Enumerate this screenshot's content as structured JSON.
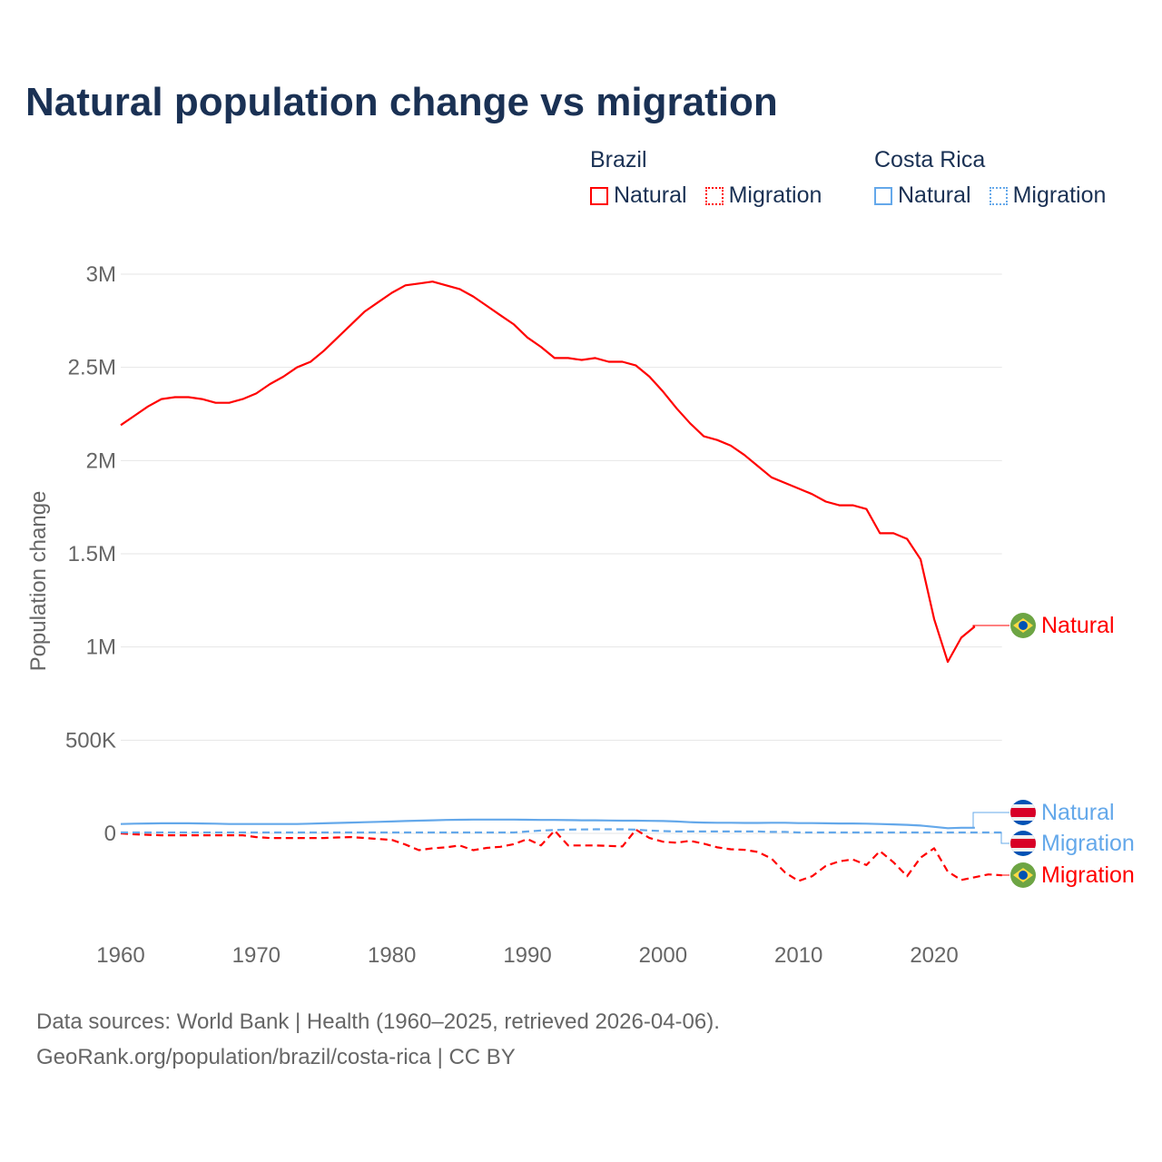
{
  "title": "Natural population change vs migration",
  "legend": {
    "groups": [
      {
        "name": "Brazil",
        "color": "#ff0000",
        "items": [
          "Natural",
          "Migration"
        ]
      },
      {
        "name": "Costa Rica",
        "color": "#64a8ea",
        "items": [
          "Natural",
          "Migration"
        ]
      }
    ]
  },
  "footer": {
    "line1": "Data sources: World Bank | Health (1960–2025, retrieved 2026-04-06).",
    "line2": "GeoRank.org/population/brazil/costa-rica | CC BY"
  },
  "chart_data": {
    "type": "line",
    "title": "Natural population change vs migration",
    "xlabel": "",
    "ylabel": "Population change",
    "xlim": [
      1960,
      2025
    ],
    "ylim": [
      -300000,
      3000000
    ],
    "x_ticks": [
      1960,
      1970,
      1980,
      1990,
      2000,
      2010,
      2020
    ],
    "y_ticks": [
      {
        "value": 0,
        "label": "0"
      },
      {
        "value": 500000,
        "label": "500K"
      },
      {
        "value": 1000000,
        "label": "1M"
      },
      {
        "value": 1500000,
        "label": "1.5M"
      },
      {
        "value": 2000000,
        "label": "2M"
      },
      {
        "value": 2500000,
        "label": "2.5M"
      },
      {
        "value": 3000000,
        "label": "3M"
      }
    ],
    "grid": true,
    "legend_position": "top-right",
    "series": [
      {
        "name": "Brazil Natural",
        "label": "Natural",
        "country": "Brazil",
        "color": "#ff0000",
        "dash": false,
        "x_start": 1960,
        "values": [
          2190000,
          2240000,
          2290000,
          2330000,
          2340000,
          2340000,
          2330000,
          2310000,
          2310000,
          2330000,
          2360000,
          2410000,
          2450000,
          2500000,
          2530000,
          2590000,
          2660000,
          2730000,
          2800000,
          2850000,
          2900000,
          2940000,
          2950000,
          2960000,
          2940000,
          2920000,
          2880000,
          2830000,
          2780000,
          2730000,
          2660000,
          2610000,
          2550000,
          2550000,
          2540000,
          2550000,
          2530000,
          2530000,
          2510000,
          2450000,
          2370000,
          2280000,
          2200000,
          2130000,
          2110000,
          2080000,
          2030000,
          1970000,
          1910000,
          1880000,
          1850000,
          1820000,
          1780000,
          1760000,
          1760000,
          1740000,
          1610000,
          1610000,
          1580000,
          1470000,
          1150000,
          920000,
          1050000,
          1110000
        ]
      },
      {
        "name": "Brazil Migration",
        "label": "Migration",
        "country": "Brazil",
        "color": "#ff0000",
        "dash": true,
        "x_start": 1960,
        "values": [
          0,
          -5000,
          -8000,
          -10000,
          -10000,
          -10000,
          -10000,
          -10000,
          -10000,
          -10000,
          -20000,
          -25000,
          -25000,
          -25000,
          -25000,
          -25000,
          -22000,
          -20000,
          -25000,
          -30000,
          -35000,
          -60000,
          -90000,
          -80000,
          -75000,
          -65000,
          -90000,
          -78000,
          -72000,
          -58000,
          -30000,
          -65000,
          15000,
          -65000,
          -65000,
          -65000,
          -67000,
          -70000,
          20000,
          -25000,
          -45000,
          -50000,
          -40000,
          -55000,
          -75000,
          -85000,
          -88000,
          -100000,
          -135000,
          -210000,
          -255000,
          -230000,
          -175000,
          -150000,
          -140000,
          -170000,
          -95000,
          -155000,
          -230000,
          -130000,
          -80000,
          -205000,
          -250000,
          -235000,
          -220000,
          -225000
        ]
      },
      {
        "name": "Costa Rica Natural",
        "label": "Natural",
        "country": "Costa Rica",
        "color": "#64a8ea",
        "dash": false,
        "x_start": 1960,
        "values": [
          50000,
          52000,
          53000,
          54000,
          54000,
          54000,
          53000,
          52000,
          50000,
          50000,
          50000,
          50000,
          50000,
          50000,
          52000,
          54000,
          56000,
          58000,
          60000,
          62000,
          64000,
          66000,
          68000,
          70000,
          72000,
          73000,
          74000,
          74000,
          74000,
          74000,
          73000,
          72000,
          72000,
          71000,
          70000,
          70000,
          69000,
          68000,
          68000,
          67000,
          66000,
          64000,
          60000,
          58000,
          57000,
          57000,
          56000,
          56000,
          57000,
          57000,
          55000,
          55000,
          54000,
          53000,
          53000,
          52000,
          50000,
          48000,
          46000,
          42000,
          35000,
          28000,
          30000,
          30000
        ]
      },
      {
        "name": "Costa Rica Migration",
        "label": "Migration",
        "country": "Costa Rica",
        "color": "#64a8ea",
        "dash": true,
        "x_start": 1960,
        "values": [
          5000,
          5000,
          5000,
          5000,
          5000,
          5000,
          5000,
          5000,
          5000,
          5000,
          5000,
          5000,
          5000,
          5000,
          5000,
          5000,
          5000,
          5000,
          5000,
          5000,
          5000,
          5000,
          5000,
          5000,
          5000,
          5000,
          5000,
          5000,
          5000,
          5000,
          10000,
          15000,
          18000,
          20000,
          21000,
          22000,
          22000,
          22000,
          20000,
          15000,
          12000,
          10000,
          10000,
          10000,
          10000,
          10000,
          10000,
          10000,
          8000,
          8000,
          5000,
          5000,
          5000,
          5000,
          5000,
          5000,
          5000,
          5000,
          5000,
          5000,
          5000,
          5000,
          5000,
          5000,
          5000,
          5000
        ]
      }
    ],
    "end_labels": [
      {
        "series": "Brazil Natural",
        "text": "Natural",
        "flag": "brazil-flag"
      },
      {
        "series": "Costa Rica Natural",
        "text": "Natural",
        "flag": "costa-rica-flag"
      },
      {
        "series": "Costa Rica Migration",
        "text": "Migration",
        "flag": "costa-rica-flag"
      },
      {
        "series": "Brazil Migration",
        "text": "Migration",
        "flag": "brazil-flag"
      }
    ]
  }
}
